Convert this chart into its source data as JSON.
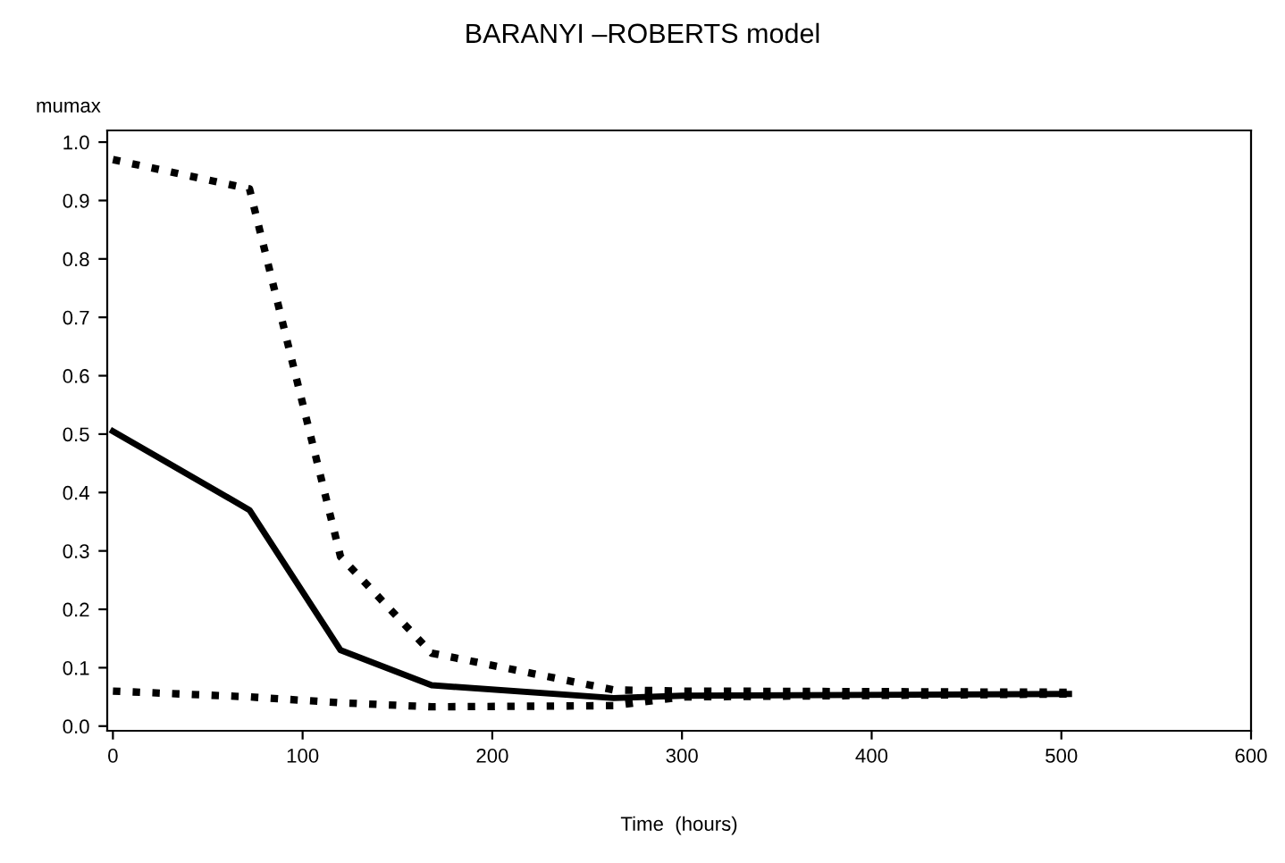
{
  "chart_data": {
    "type": "line",
    "title": "BARANYI –ROBERTS model",
    "xlabel": "Time  (hours)",
    "ylabel": "mumax",
    "xlim": [
      -3,
      600
    ],
    "ylim": [
      -0.008,
      1.02
    ],
    "xticks": [
      0,
      100,
      200,
      300,
      400,
      500,
      600
    ],
    "yticks": [
      {
        "value": 0,
        "label": "0.0"
      },
      0.1,
      0.2,
      0.3,
      0.4,
      0.5,
      0.6,
      0.7,
      0.8,
      0.9,
      {
        "value": 1,
        "label": "1.0"
      }
    ],
    "grid": false,
    "legend": false,
    "marker": "none",
    "series": [
      {
        "color": "#000000",
        "line_style": "dotted",
        "x": [
          0,
          72,
          120,
          168,
          264,
          300,
          504
        ],
        "values": [
          0.97,
          0.92,
          0.29,
          0.125,
          0.062,
          0.06,
          0.058
        ]
      },
      {
        "color": "#000000",
        "line_style": "solid",
        "x": [
          0,
          72,
          120,
          168,
          264,
          300,
          504
        ],
        "values": [
          0.505,
          0.37,
          0.13,
          0.07,
          0.048,
          0.052,
          0.055
        ]
      },
      {
        "color": "#000000",
        "line_style": "dotted",
        "x": [
          0,
          72,
          120,
          168,
          264,
          300,
          504
        ],
        "values": [
          0.06,
          0.05,
          0.04,
          0.033,
          0.035,
          0.05,
          0.055
        ]
      }
    ]
  }
}
